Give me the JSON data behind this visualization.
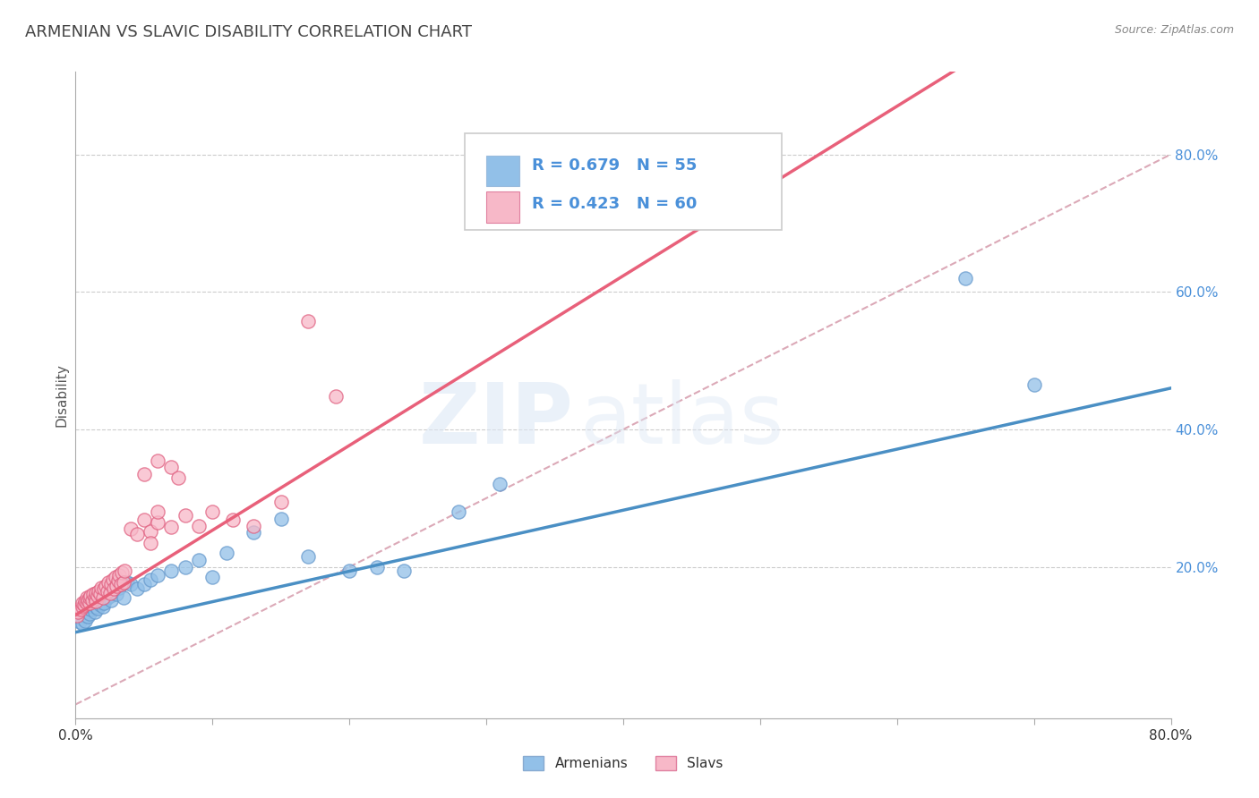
{
  "title": "ARMENIAN VS SLAVIC DISABILITY CORRELATION CHART",
  "source": "Source: ZipAtlas.com",
  "ylabel": "Disability",
  "xlim": [
    0.0,
    0.8
  ],
  "ylim": [
    -0.02,
    0.92
  ],
  "xticks": [
    0.0,
    0.1,
    0.2,
    0.3,
    0.4,
    0.5,
    0.6,
    0.7,
    0.8
  ],
  "xtick_labels": [
    "0.0%",
    "",
    "",
    "",
    "",
    "",
    "",
    "",
    "80.0%"
  ],
  "yticks_right": [
    0.2,
    0.4,
    0.6,
    0.8
  ],
  "ytick_labels_right": [
    "20.0%",
    "40.0%",
    "60.0%",
    "80.0%"
  ],
  "armenian_color": "#92c0e8",
  "slavic_color": "#f7b8c8",
  "armenian_line_color": "#4a8fc4",
  "slavic_line_color": "#e8607a",
  "diagonal_color": "#d8a0b0",
  "legend_text_color": "#4a90d9",
  "R_armenian": 0.679,
  "N_armenian": 55,
  "R_slavic": 0.423,
  "N_slavic": 60,
  "armenian_scatter_x": [
    0.003,
    0.004,
    0.005,
    0.006,
    0.007,
    0.008,
    0.009,
    0.009,
    0.01,
    0.01,
    0.011,
    0.012,
    0.013,
    0.014,
    0.015,
    0.015,
    0.016,
    0.017,
    0.018,
    0.018,
    0.019,
    0.02,
    0.02,
    0.021,
    0.022,
    0.023,
    0.024,
    0.025,
    0.026,
    0.027,
    0.028,
    0.03,
    0.032,
    0.035,
    0.038,
    0.04,
    0.045,
    0.05,
    0.055,
    0.06,
    0.07,
    0.08,
    0.09,
    0.1,
    0.11,
    0.13,
    0.15,
    0.17,
    0.2,
    0.22,
    0.24,
    0.28,
    0.31,
    0.65,
    0.7
  ],
  "armenian_scatter_y": [
    0.12,
    0.125,
    0.118,
    0.13,
    0.122,
    0.135,
    0.128,
    0.14,
    0.132,
    0.145,
    0.138,
    0.142,
    0.148,
    0.135,
    0.143,
    0.15,
    0.14,
    0.152,
    0.145,
    0.158,
    0.148,
    0.142,
    0.155,
    0.148,
    0.162,
    0.155,
    0.168,
    0.158,
    0.152,
    0.165,
    0.175,
    0.16,
    0.17,
    0.155,
    0.178,
    0.175,
    0.168,
    0.175,
    0.182,
    0.188,
    0.195,
    0.2,
    0.21,
    0.185,
    0.22,
    0.25,
    0.27,
    0.215,
    0.195,
    0.2,
    0.195,
    0.28,
    0.32,
    0.62,
    0.465
  ],
  "slavic_scatter_x": [
    0.001,
    0.002,
    0.003,
    0.004,
    0.005,
    0.005,
    0.006,
    0.007,
    0.008,
    0.008,
    0.009,
    0.01,
    0.01,
    0.011,
    0.012,
    0.013,
    0.014,
    0.015,
    0.015,
    0.016,
    0.017,
    0.018,
    0.019,
    0.02,
    0.021,
    0.022,
    0.023,
    0.024,
    0.025,
    0.026,
    0.027,
    0.028,
    0.029,
    0.03,
    0.031,
    0.032,
    0.033,
    0.034,
    0.035,
    0.036,
    0.04,
    0.045,
    0.05,
    0.055,
    0.06,
    0.07,
    0.08,
    0.09,
    0.1,
    0.115,
    0.13,
    0.15,
    0.17,
    0.19,
    0.05,
    0.06,
    0.07,
    0.06,
    0.055,
    0.075
  ],
  "slavic_scatter_y": [
    0.13,
    0.135,
    0.14,
    0.138,
    0.142,
    0.148,
    0.145,
    0.15,
    0.148,
    0.155,
    0.152,
    0.148,
    0.155,
    0.158,
    0.152,
    0.16,
    0.155,
    0.15,
    0.162,
    0.158,
    0.165,
    0.16,
    0.17,
    0.155,
    0.168,
    0.172,
    0.165,
    0.178,
    0.162,
    0.175,
    0.182,
    0.168,
    0.185,
    0.172,
    0.18,
    0.188,
    0.175,
    0.192,
    0.178,
    0.195,
    0.255,
    0.248,
    0.268,
    0.252,
    0.265,
    0.258,
    0.275,
    0.26,
    0.28,
    0.268,
    0.26,
    0.295,
    0.558,
    0.448,
    0.335,
    0.355,
    0.345,
    0.28,
    0.235,
    0.33
  ],
  "watermark_zip": "ZIP",
  "watermark_atlas": "atlas",
  "background_color": "#ffffff",
  "grid_color": "#cccccc",
  "legend_armenian_label": "Armenians",
  "legend_slavic_label": "Slavs"
}
